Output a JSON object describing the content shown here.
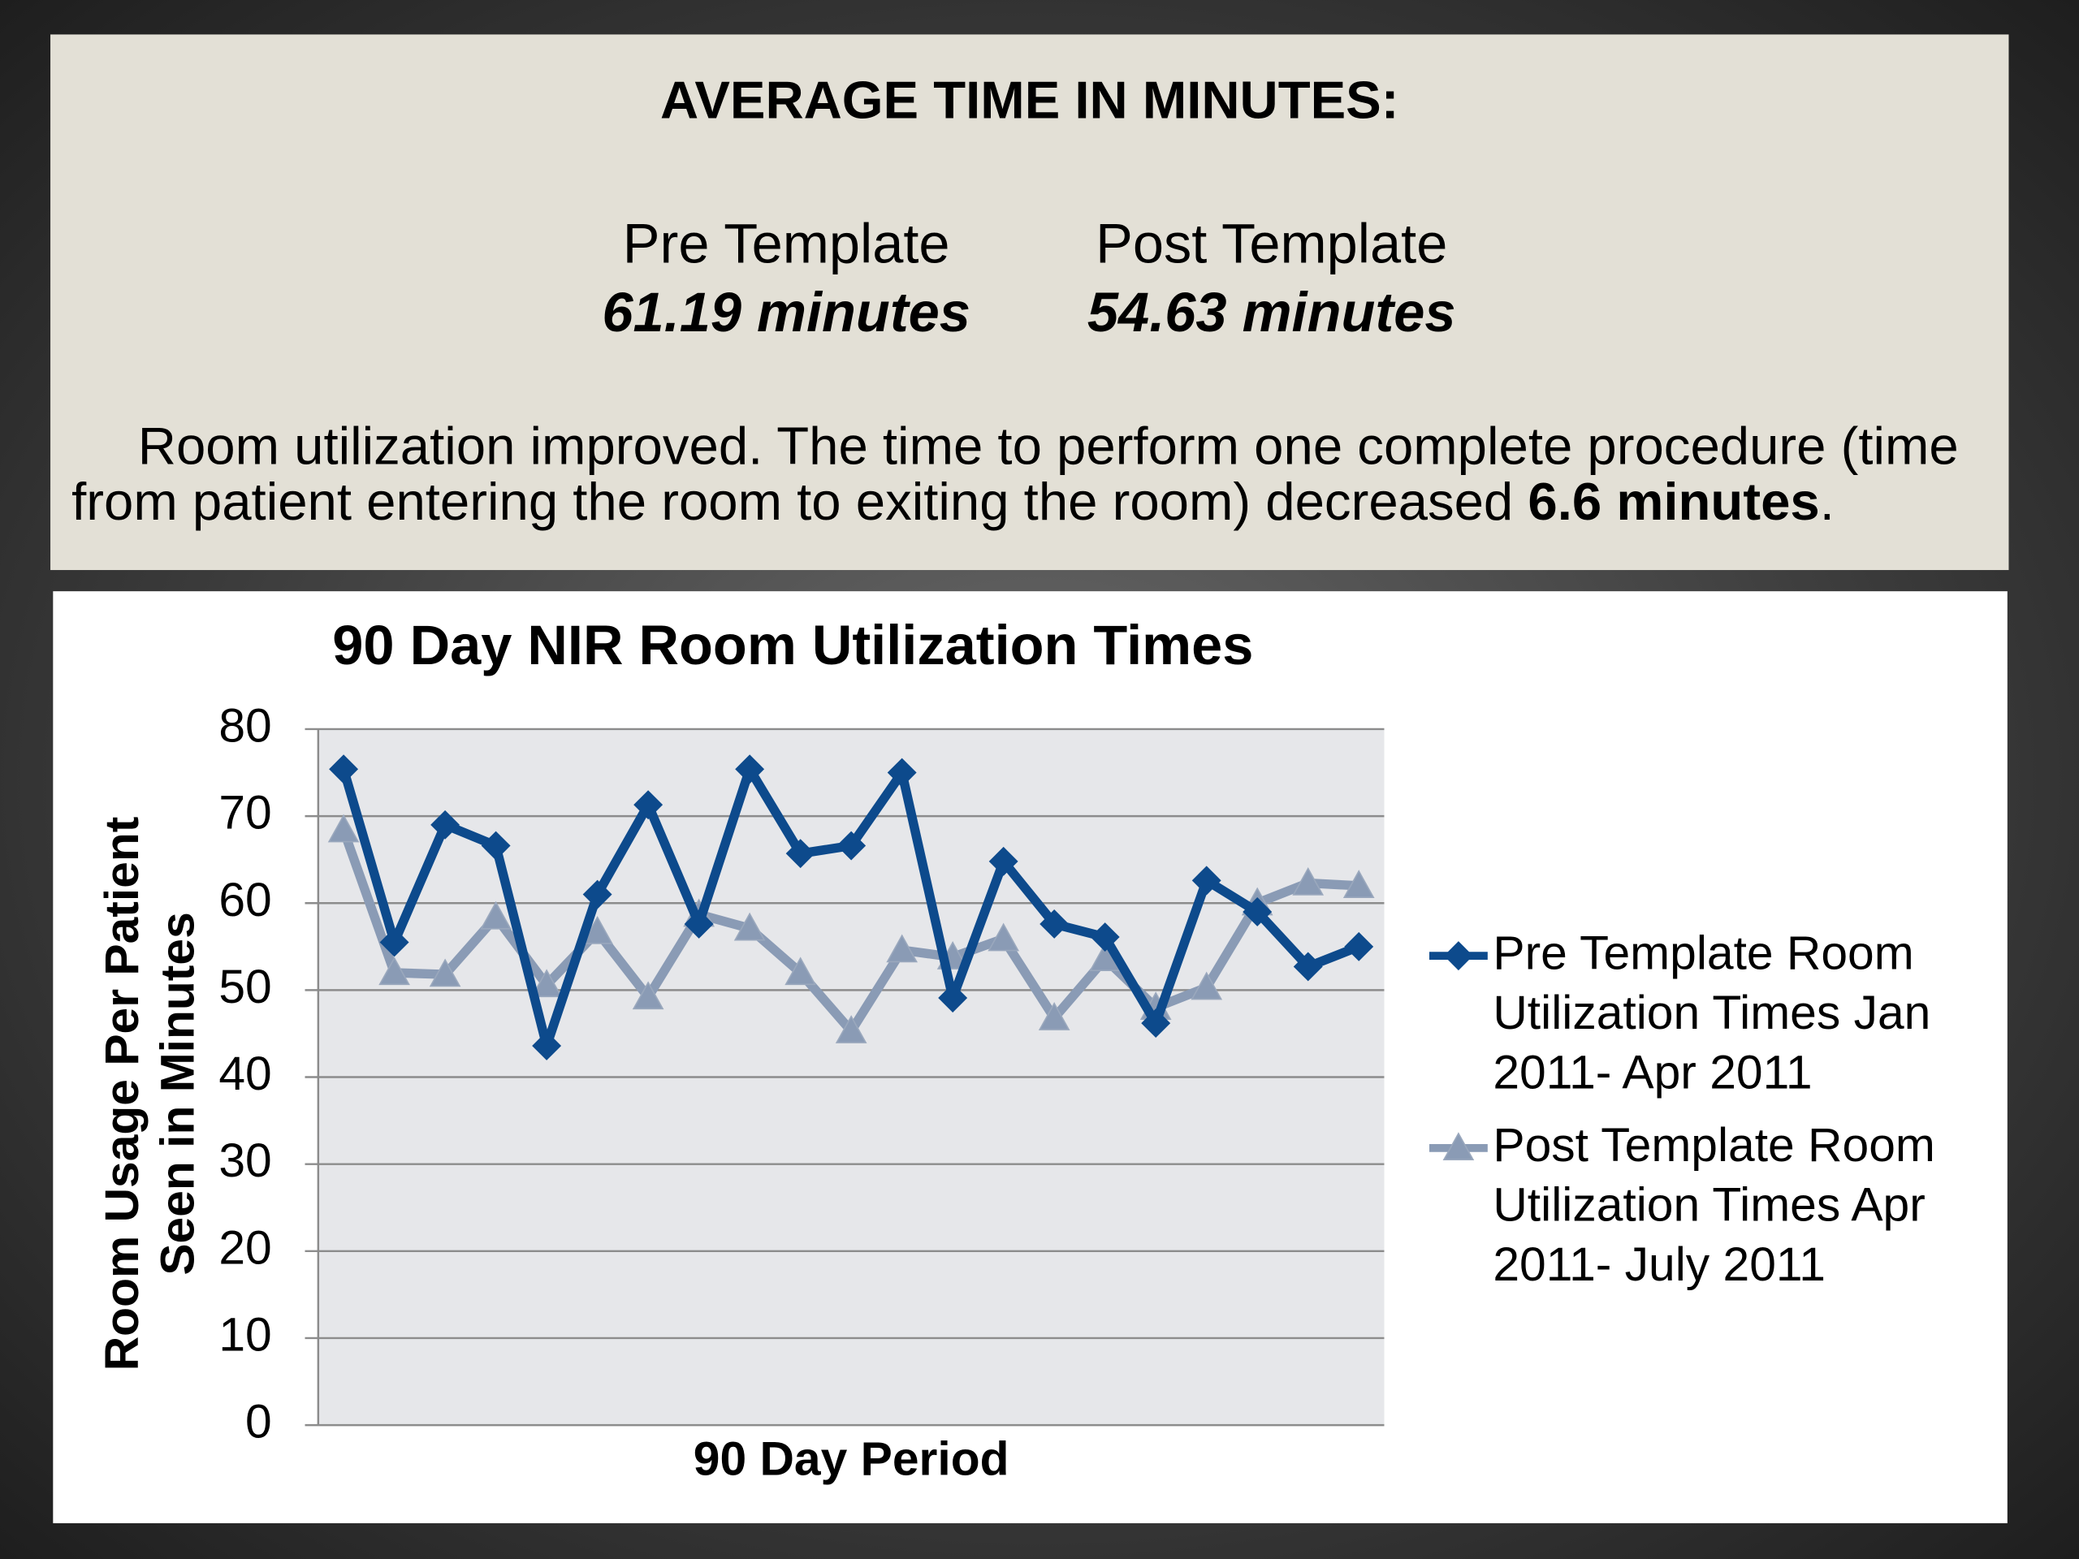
{
  "summary": {
    "title": "AVERAGE TIME IN MINUTES:",
    "pre_label": "Pre Template",
    "pre_value": "61.19 minutes",
    "post_label": "Post Template",
    "post_value": "54.63 minutes",
    "paragraph": [
      "Room utilization improved. The time to perform one complete procedure (time from patient entering the room to exiting the room) decreased ",
      "6.6 minutes",
      "."
    ]
  },
  "chart_data": {
    "type": "line",
    "title": "90 Day NIR Room Utilization Times",
    "x_label": "90 Day Period",
    "y_label": "Room Usage Per Patient Seen in Minutes",
    "categories": [
      null,
      null,
      null,
      null,
      null,
      null,
      null,
      null,
      null,
      null,
      null,
      null,
      null,
      null,
      null,
      null,
      null,
      null,
      null,
      null,
      null
    ],
    "series": [
      {
        "name": "Pre Template Room Utilization Times Jan 2011- Apr 2011",
        "color": "#0d4a8c",
        "marker": "diamond",
        "values": [
          75.4,
          55.5,
          69.0,
          66.6,
          43.6,
          61.0,
          71.3,
          57.6,
          75.4,
          65.7,
          66.6,
          75.0,
          49.1,
          64.8,
          57.6,
          56.1,
          46.2,
          62.6,
          59.0,
          52.7,
          55.0
        ]
      },
      {
        "name": "Post Template Room Utilization Times Apr 2011- July 2011",
        "color": "#8a9bb5",
        "marker": "triangle",
        "values": [
          68.4,
          52.0,
          51.8,
          58.4,
          50.6,
          56.7,
          49.2,
          58.7,
          57.1,
          52.0,
          45.3,
          54.6,
          53.8,
          55.9,
          46.8,
          53.6,
          48.0,
          50.3,
          60.0,
          62.3,
          62.0
        ]
      }
    ],
    "ylim": [
      0,
      80
    ],
    "yticks": [
      0,
      10,
      20,
      30,
      40,
      50,
      60,
      70,
      80
    ],
    "grid": true,
    "legend": "right"
  }
}
